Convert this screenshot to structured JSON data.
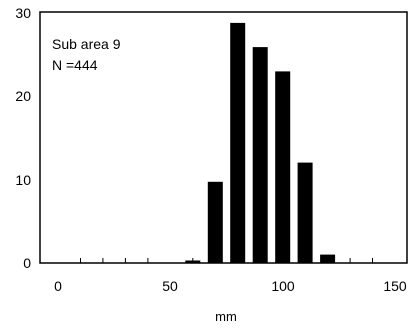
{
  "chart_data": {
    "type": "bar",
    "x": [
      60,
      70,
      80,
      90,
      100,
      110,
      120
    ],
    "values": [
      0.3,
      9.7,
      28.7,
      25.8,
      22.9,
      12.0,
      1.0
    ],
    "xlabel": "mm",
    "ylabel": "",
    "xlim": [
      0,
      150
    ],
    "ylim": [
      0,
      30
    ],
    "x_ticks": [
      "0",
      "50",
      "100",
      "150"
    ],
    "y_ticks": [
      "0",
      "10",
      "20",
      "30"
    ],
    "annotations": [
      "Sub area 9",
      "N =444"
    ],
    "grid": false,
    "bar_color": "#000000"
  }
}
